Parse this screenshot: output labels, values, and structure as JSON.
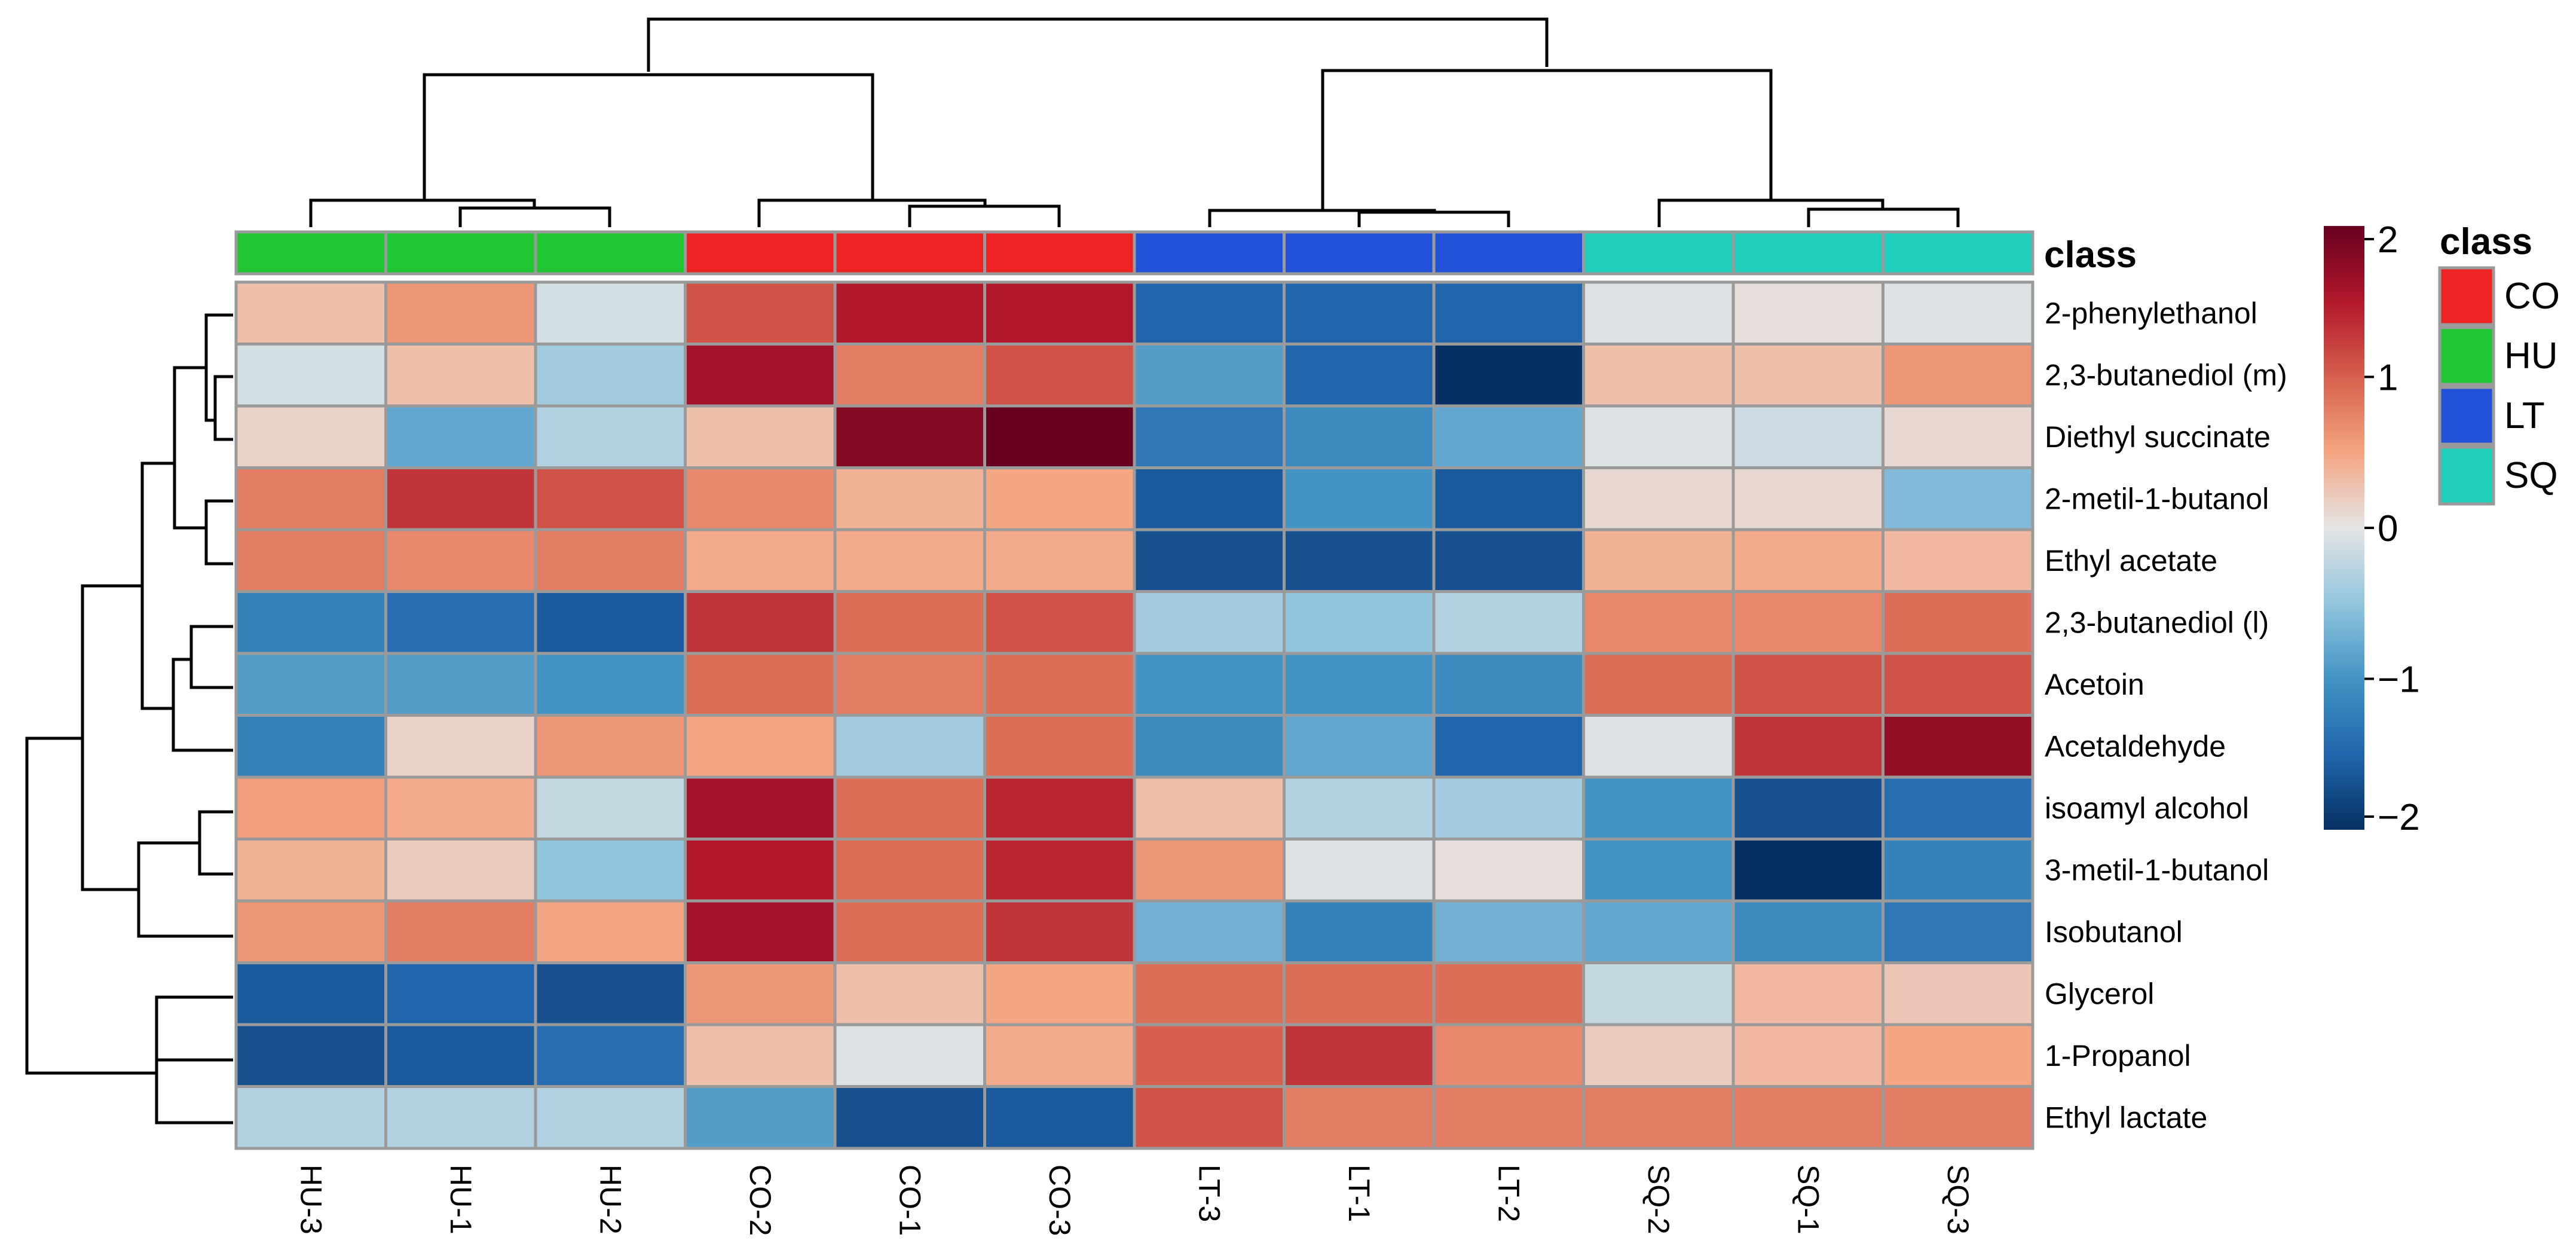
{
  "chart_data": {
    "type": "heatmap",
    "title": "",
    "columns": [
      "HU-3",
      "HU-1",
      "HU-2",
      "CO-2",
      "CO-1",
      "CO-3",
      "LT-3",
      "LT-1",
      "LT-2",
      "SQ-2",
      "SQ-1",
      "SQ-3"
    ],
    "column_classes": [
      "HU",
      "HU",
      "HU",
      "CO",
      "CO",
      "CO",
      "LT",
      "LT",
      "LT",
      "SQ",
      "SQ",
      "SQ"
    ],
    "rows": [
      "2-phenylethanol",
      "2,3-butanediol (m)",
      "Diethyl succinate",
      "2-metil-1-butanol",
      "Ethyl acetate",
      "2,3-butanediol (l)",
      "Acetoin",
      "Acetaldehyde",
      "isoamyl alcohol",
      "3-metil-1-butanol",
      "Isobutanol",
      "Glycerol",
      "1-Propanol",
      "Ethyl lactate"
    ],
    "values": [
      [
        0.3,
        0.6,
        -0.1,
        1.1,
        1.5,
        1.5,
        -1.5,
        -1.5,
        -1.5,
        -0.05,
        0.05,
        -0.05
      ],
      [
        -0.1,
        0.3,
        -0.4,
        1.6,
        0.8,
        1.1,
        -0.9,
        -1.5,
        -2.0,
        0.3,
        0.3,
        0.6
      ],
      [
        0.15,
        -0.8,
        -0.3,
        0.3,
        1.8,
        2.0,
        -1.3,
        -1.1,
        -0.8,
        -0.05,
        -0.15,
        0.1
      ],
      [
        0.8,
        1.3,
        1.1,
        0.7,
        0.4,
        0.5,
        -1.6,
        -1.0,
        -1.6,
        0.1,
        0.1,
        -0.6
      ],
      [
        0.8,
        0.7,
        0.8,
        0.45,
        0.45,
        0.45,
        -1.7,
        -1.7,
        -1.7,
        0.4,
        0.45,
        0.35
      ],
      [
        -1.2,
        -1.4,
        -1.6,
        1.3,
        0.9,
        1.1,
        -0.4,
        -0.5,
        -0.3,
        0.7,
        0.7,
        0.9
      ],
      [
        -0.9,
        -0.9,
        -1.0,
        0.9,
        0.8,
        0.9,
        -1.0,
        -1.0,
        -1.1,
        0.9,
        1.1,
        1.1
      ],
      [
        -1.2,
        0.15,
        0.6,
        0.5,
        -0.4,
        0.9,
        -1.1,
        -0.8,
        -1.5,
        -0.05,
        1.3,
        1.7
      ],
      [
        0.55,
        0.45,
        -0.2,
        1.6,
        0.9,
        1.4,
        0.3,
        -0.3,
        -0.4,
        -1.0,
        -1.7,
        -1.4
      ],
      [
        0.4,
        0.2,
        -0.5,
        1.5,
        0.9,
        1.4,
        0.6,
        -0.05,
        0.05,
        -1.0,
        -2.0,
        -1.2
      ],
      [
        0.6,
        0.8,
        0.5,
        1.6,
        0.9,
        1.3,
        -0.7,
        -1.2,
        -0.7,
        -0.8,
        -1.1,
        -1.3
      ],
      [
        -1.6,
        -1.5,
        -1.7,
        0.6,
        0.3,
        0.5,
        0.9,
        0.9,
        0.9,
        -0.2,
        0.35,
        0.25
      ],
      [
        -1.7,
        -1.6,
        -1.4,
        0.3,
        -0.05,
        0.45,
        1.0,
        1.3,
        0.7,
        0.2,
        0.35,
        0.5
      ],
      [
        -0.3,
        -0.3,
        -0.3,
        -0.9,
        -1.7,
        -1.6,
        1.1,
        0.8,
        0.8,
        0.8,
        0.8,
        0.8
      ]
    ],
    "color_scale": {
      "min": -2,
      "max": 2,
      "ticks": [
        2,
        1,
        0,
        -1,
        -2
      ],
      "tick_labels": [
        "2",
        "1",
        "0",
        "−1",
        "−2"
      ]
    },
    "annotation": {
      "label": "class"
    },
    "legend": {
      "title": "class",
      "position": "right",
      "entries": [
        {
          "name": "CO",
          "color": "#ee2424"
        },
        {
          "name": "HU",
          "color": "#1fc832"
        },
        {
          "name": "LT",
          "color": "#2151d8"
        },
        {
          "name": "SQ",
          "color": "#1fcfbb"
        }
      ]
    },
    "col_dendrogram_order": "((HU-3,(HU-1,HU-2)),(CO-2,(CO-1,CO-3))),((LT-3,(LT-1,LT-2)),(SQ-2,(SQ-1,SQ-3)))",
    "row_dendrogram_order": "((((2-phenylethanol,(2,3-butanediol (m),Diethyl succinate)),(2-metil-1-butanol,Ethyl acetate)),((2,3-butanediol (l),Acetoin),Acetaldehyde)),((isoamyl alcohol,3-metil-1-butanol),Isobutanol)),((Glycerol,1-Propanol),Ethyl lactate)"
  }
}
